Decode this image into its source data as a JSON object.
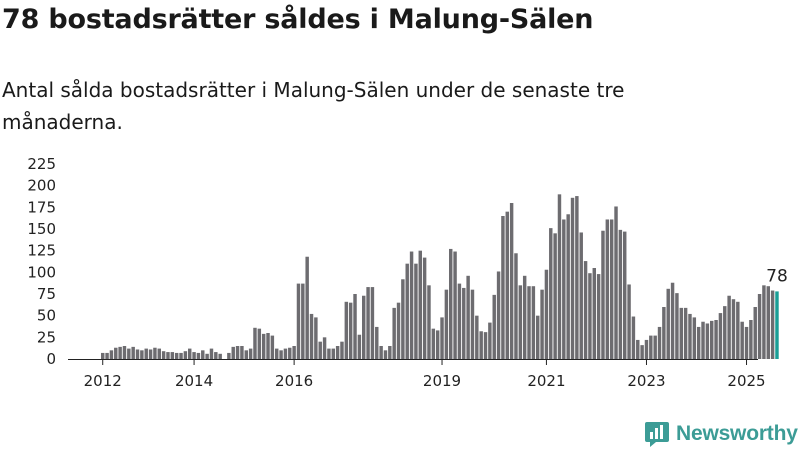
{
  "header": {
    "title": "78 bostadsrätter såldes i Malung-Sälen",
    "subtitle": "Antal sålda bostadsrätter i Malung-Sälen under de senaste tre månaderna."
  },
  "brand": {
    "name": "Newsworthy",
    "color": "#3c9c96"
  },
  "colors": {
    "bar": "#6d6c70",
    "highlight": "#1a9e96"
  },
  "chart_data": {
    "type": "bar",
    "title": "",
    "xlabel": "",
    "ylabel": "",
    "ylim": [
      0,
      225
    ],
    "yticks": [
      0,
      25,
      50,
      75,
      100,
      125,
      150,
      175,
      200,
      225
    ],
    "xticks": [
      {
        "label": "2012",
        "index": 0
      },
      {
        "label": "2014",
        "index": 21
      },
      {
        "label": "2016",
        "index": 44
      },
      {
        "label": "2019",
        "index": 78
      },
      {
        "label": "2021",
        "index": 102
      },
      {
        "label": "2023",
        "index": 125
      },
      {
        "label": "2025",
        "index": 148
      }
    ],
    "grid": false,
    "highlight_last": true,
    "last_value_label": "78",
    "values": [
      7,
      7,
      10,
      13,
      14,
      15,
      12,
      14,
      11,
      10,
      12,
      11,
      13,
      12,
      9,
      8,
      8,
      7,
      7,
      9,
      12,
      8,
      7,
      10,
      6,
      12,
      8,
      6,
      0,
      7,
      14,
      15,
      15,
      10,
      12,
      36,
      35,
      29,
      30,
      27,
      12,
      10,
      12,
      13,
      15,
      87,
      87,
      118,
      52,
      48,
      20,
      25,
      12,
      12,
      15,
      20,
      66,
      65,
      75,
      28,
      73,
      83,
      83,
      37,
      15,
      10,
      15,
      59,
      65,
      92,
      110,
      124,
      110,
      125,
      117,
      85,
      35,
      33,
      48,
      80,
      127,
      124,
      87,
      82,
      96,
      80,
      50,
      32,
      31,
      42,
      74,
      101,
      165,
      170,
      180,
      122,
      85,
      96,
      84,
      84,
      50,
      80,
      103,
      151,
      145,
      190,
      161,
      167,
      186,
      188,
      146,
      113,
      99,
      105,
      98,
      148,
      161,
      161,
      176,
      149,
      147,
      86,
      49,
      22,
      16,
      22,
      27,
      27,
      37,
      60,
      81,
      88,
      76,
      59,
      59,
      52,
      48,
      37,
      43,
      41,
      44,
      45,
      53,
      61,
      73,
      69,
      66,
      43,
      37,
      45,
      60,
      75,
      85,
      84,
      79,
      78
    ]
  }
}
